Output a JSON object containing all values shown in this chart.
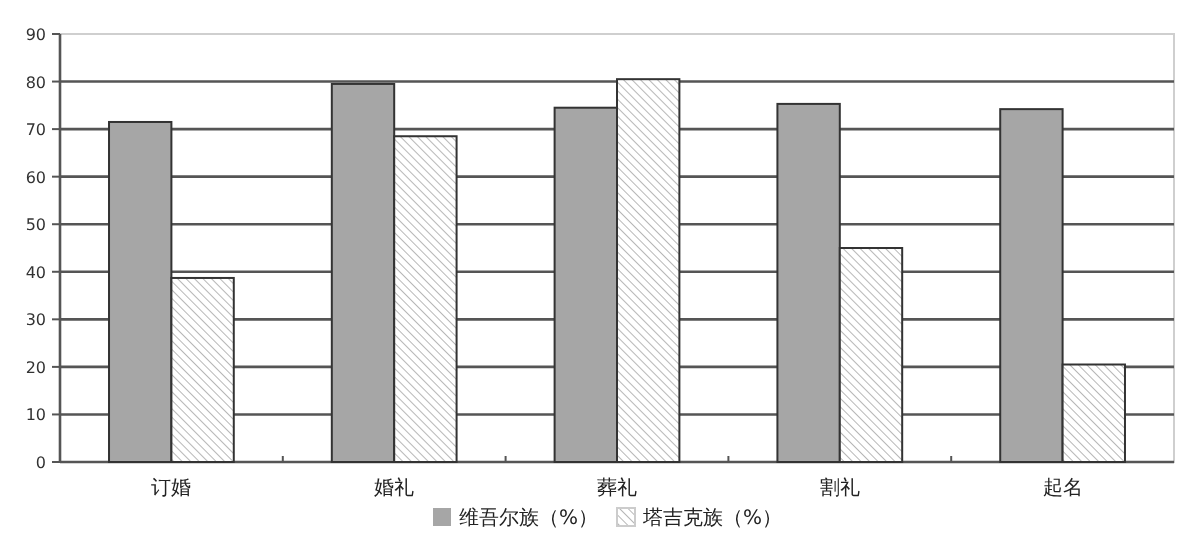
{
  "chart_data": {
    "type": "bar",
    "categories": [
      "订婚",
      "婚礼",
      "葬礼",
      "割礼",
      "起名"
    ],
    "series": [
      {
        "name": "维吾尔族（%）",
        "color": "#a6a6a6",
        "values": [
          71.5,
          79.5,
          74.5,
          75.3,
          74.2
        ]
      },
      {
        "name": "塔吉克族（%）",
        "color": "#333333",
        "values": [
          38.7,
          68.5,
          80.5,
          45,
          20.5
        ]
      }
    ],
    "ylim": [
      0,
      90
    ],
    "yticks": [
      0,
      10,
      20,
      30,
      40,
      50,
      60,
      70,
      80,
      90
    ],
    "grid": "y",
    "legend": "bottom"
  }
}
